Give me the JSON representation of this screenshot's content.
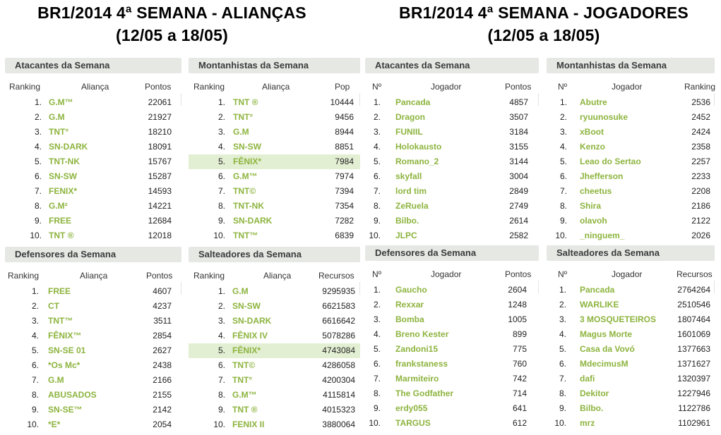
{
  "titles": {
    "left_line1": "BR1/2014 4ª SEMANA -  ALIANÇAS",
    "left_line2": "(12/05 a 18/05)",
    "right_line1": "BR1/2014 4ª SEMANA - JOGADORES",
    "right_line2": "(12/05 a 18/05)"
  },
  "panels": {
    "ali_atacantes": {
      "title": "Atacantes da Semana",
      "headers": [
        "Ranking",
        "Aliança",
        "Pontos"
      ],
      "rows": [
        [
          "1.",
          "G.M™",
          "22061"
        ],
        [
          "2.",
          "G.M",
          "21927"
        ],
        [
          "3.",
          "TNT°",
          "18210"
        ],
        [
          "4.",
          "SN-DARK",
          "18091"
        ],
        [
          "5.",
          "TNT-NK",
          "15767"
        ],
        [
          "6.",
          "SN-SW",
          "15287"
        ],
        [
          "7.",
          "FENIX*",
          "14593"
        ],
        [
          "8.",
          "G.M²",
          "14221"
        ],
        [
          "9.",
          "FREE",
          "12684"
        ],
        [
          "10.",
          "TNT ®",
          "12018"
        ]
      ],
      "highlight": -1
    },
    "ali_montanhistas": {
      "title": "Montanhistas da Semana",
      "headers": [
        "Ranking",
        "Aliança",
        "Pop"
      ],
      "rows": [
        [
          "1.",
          "TNT ®",
          "10444"
        ],
        [
          "2.",
          "TNT°",
          "9456"
        ],
        [
          "3.",
          "G.M",
          "8944"
        ],
        [
          "4.",
          "SN-SW",
          "8851"
        ],
        [
          "5.",
          "FÊNIX*",
          "7984"
        ],
        [
          "6.",
          "G.M™",
          "7974"
        ],
        [
          "7.",
          "TNT©",
          "7394"
        ],
        [
          "8.",
          "TNT-NK",
          "7354"
        ],
        [
          "9.",
          "SN-DARK",
          "7282"
        ],
        [
          "10.",
          "TNT™",
          "6839"
        ]
      ],
      "highlight": 4
    },
    "ali_defensores": {
      "title": "Defensores da Semana",
      "headers": [
        "Ranking",
        "Aliança",
        "Pontos"
      ],
      "rows": [
        [
          "1.",
          "FREE",
          "4607"
        ],
        [
          "2.",
          "CT",
          "4237"
        ],
        [
          "3.",
          "TNT™",
          "3511"
        ],
        [
          "4.",
          "FÊNIX™",
          "2854"
        ],
        [
          "5.",
          "SN-SE 01",
          "2627"
        ],
        [
          "6.",
          "*Os Mc*",
          "2438"
        ],
        [
          "7.",
          "G.M",
          "2166"
        ],
        [
          "8.",
          "ABUSADOS",
          "2155"
        ],
        [
          "9.",
          "SN-SE™",
          "2142"
        ],
        [
          "10.",
          "*E*",
          "2054"
        ]
      ],
      "highlight": -1
    },
    "ali_salteadores": {
      "title": "Salteadores da Semana",
      "headers": [
        "Ranking",
        "Aliança",
        "Recursos"
      ],
      "rows": [
        [
          "1.",
          "G.M",
          "9295935"
        ],
        [
          "2.",
          "SN-SW",
          "6621583"
        ],
        [
          "3.",
          "SN-DARK",
          "6616642"
        ],
        [
          "4.",
          "FÊNIX IV",
          "5078286"
        ],
        [
          "5.",
          "FÊNIX*",
          "4743084"
        ],
        [
          "6.",
          "TNT©",
          "4286058"
        ],
        [
          "7.",
          "TNT°",
          "4200304"
        ],
        [
          "8.",
          "G.M™",
          "4115814"
        ],
        [
          "9.",
          "TNT ®",
          "4015323"
        ],
        [
          "10.",
          "FENIX II",
          "3880064"
        ]
      ],
      "highlight": 4
    },
    "jog_atacantes": {
      "title": "Atacantes da Semana",
      "headers": [
        "Nº",
        "Jogador",
        "Pontos"
      ],
      "rows": [
        [
          "1.",
          "Pancada",
          "4857"
        ],
        [
          "2.",
          "Dragon",
          "3507"
        ],
        [
          "3.",
          "FUNIIL",
          "3184"
        ],
        [
          "4.",
          "Holokausto",
          "3155"
        ],
        [
          "5.",
          "Romano_2",
          "3144"
        ],
        [
          "6.",
          "skyfall",
          "3004"
        ],
        [
          "7.",
          "lord tim",
          "2849"
        ],
        [
          "8.",
          "ZeRuela",
          "2749"
        ],
        [
          "9.",
          "Bilbo.",
          "2614"
        ],
        [
          "10.",
          "JLPC",
          "2582"
        ]
      ],
      "highlight": -1
    },
    "jog_montanhistas": {
      "title": "Montanhistas da Semana",
      "headers": [
        "Nº",
        "Jogador",
        "Ranking"
      ],
      "rows": [
        [
          "1.",
          "Abutre",
          "2536"
        ],
        [
          "2.",
          "ryuunosuke",
          "2452"
        ],
        [
          "3.",
          "xBoot",
          "2424"
        ],
        [
          "4.",
          "Kenzo",
          "2358"
        ],
        [
          "5.",
          "Leao do Sertao",
          "2257"
        ],
        [
          "6.",
          "Jhefferson",
          "2233"
        ],
        [
          "7.",
          "cheetus",
          "2208"
        ],
        [
          "8.",
          "Shira",
          "2186"
        ],
        [
          "9.",
          "olavoh",
          "2122"
        ],
        [
          "10.",
          "_ninguem_",
          "2026"
        ]
      ],
      "highlight": -1
    },
    "jog_defensores": {
      "title": "Defensores da Semana",
      "headers": [
        "Nº",
        "Jogador",
        "Pontos"
      ],
      "rows": [
        [
          "1.",
          "Gaucho",
          "2604"
        ],
        [
          "2.",
          "Rexxar",
          "1248"
        ],
        [
          "3.",
          "Bomba",
          "1005"
        ],
        [
          "4.",
          "Breno Kester",
          "899"
        ],
        [
          "5.",
          "Zandoni15",
          "775"
        ],
        [
          "6.",
          "frankstaness",
          "760"
        ],
        [
          "7.",
          "Marmiteiro",
          "742"
        ],
        [
          "8.",
          "The Godfather",
          "714"
        ],
        [
          "9.",
          "erdy055",
          "641"
        ],
        [
          "10.",
          "TARGUS",
          "612"
        ]
      ],
      "highlight": -1
    },
    "jog_salteadores": {
      "title": "Salteadores da Semana",
      "headers": [
        "Nº",
        "Jogador",
        "Recursos"
      ],
      "rows": [
        [
          "1.",
          "Pancada",
          "2764264"
        ],
        [
          "2.",
          "WARLIKE",
          "2510546"
        ],
        [
          "3.",
          "3 MOSQUETEIROS",
          "1807464"
        ],
        [
          "4.",
          "Magus Morte",
          "1601069"
        ],
        [
          "5.",
          "Casa da Vovó",
          "1377663"
        ],
        [
          "6.",
          "MdecimusM",
          "1371627"
        ],
        [
          "7.",
          "dafi",
          "1320397"
        ],
        [
          "8.",
          "Dekitor",
          "1227946"
        ],
        [
          "9.",
          "Bilbo.",
          "1122786"
        ],
        [
          "10.",
          "mrz",
          "1102961"
        ]
      ],
      "highlight": -1
    }
  }
}
